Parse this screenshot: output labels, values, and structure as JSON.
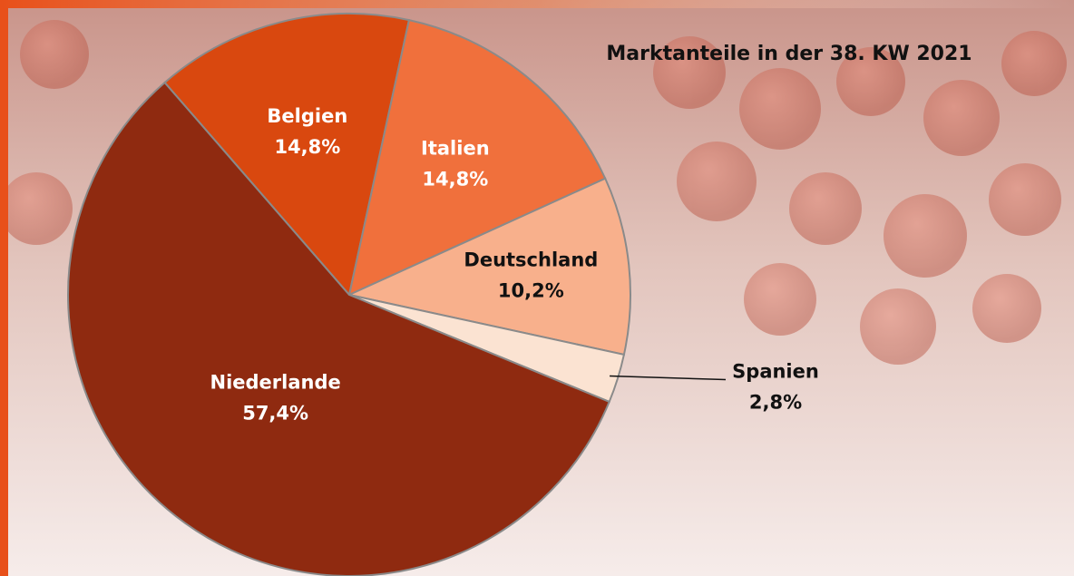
{
  "chart_data": {
    "type": "pie",
    "title": "Marktanteile in der 38. KW 2021",
    "categories": [
      "Belgien",
      "Italien",
      "Deutschland",
      "Spanien",
      "Niederlande"
    ],
    "values": [
      14.8,
      14.8,
      10.2,
      2.8,
      57.4
    ],
    "value_labels": [
      "14,8%",
      "14,8%",
      "10,2%",
      "2,8%",
      "57,4%"
    ],
    "colors": [
      "#d9480f",
      "#f0703c",
      "#f8b08c",
      "#fbe3d2",
      "#8f2a10"
    ]
  }
}
